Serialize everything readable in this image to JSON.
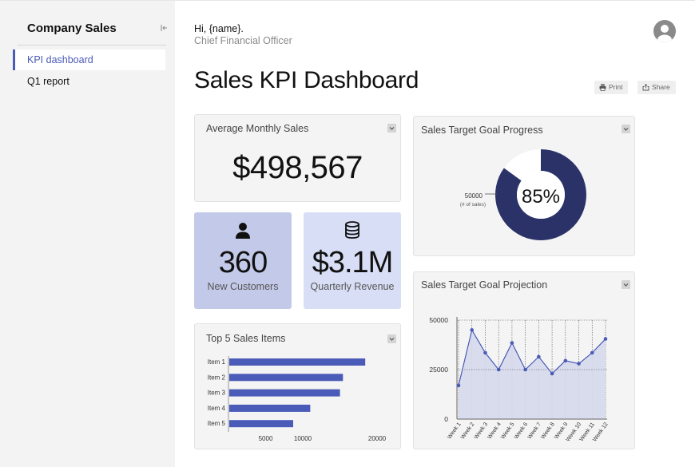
{
  "sidebar": {
    "title": "Company Sales",
    "items": [
      {
        "label": "KPI dashboard",
        "active": true
      },
      {
        "label": "Q1 report",
        "active": false
      }
    ]
  },
  "header": {
    "greeting": "Hi, {name}.",
    "role": "Chief Financial Officer",
    "title": "Sales KPI Dashboard",
    "print_label": "Print",
    "share_label": "Share"
  },
  "avg_sales": {
    "title": "Average Monthly Sales",
    "value": "$498,567"
  },
  "new_customers": {
    "value": "360",
    "label": "New Customers",
    "icon": "person-icon"
  },
  "quarterly_revenue": {
    "value": "$3.1M",
    "label": "Quarterly Revenue",
    "icon": "database-icon"
  },
  "colors": {
    "navy": "#2b3268",
    "accent": "#4a5bb8",
    "kpi1": "#c3c9e8",
    "kpi2": "#d8def5",
    "area": "#d5d9ec"
  },
  "chart_data": [
    {
      "id": "goal_progress",
      "type": "pie",
      "title": "Sales Target Goal Progress",
      "center_label": "85%",
      "percent": 85,
      "target": "50000",
      "target_note": "(# of sales)"
    },
    {
      "id": "top_items",
      "type": "bar",
      "orientation": "horizontal",
      "title": "Top 5 Sales Items",
      "categories": [
        "Item 1",
        "Item 2",
        "Item 3",
        "Item 4",
        "Item 5"
      ],
      "values": [
        18300,
        15300,
        14900,
        10900,
        8600
      ],
      "xlim": [
        0,
        20000
      ],
      "xticks": [
        5000,
        10000,
        20000
      ]
    },
    {
      "id": "goal_projection",
      "type": "area",
      "title": "Sales Target Goal Projection",
      "categories": [
        "Week 1",
        "Week 2",
        "Week 3",
        "Week 4",
        "Week 5",
        "Week 6",
        "Week 7",
        "Week 8",
        "Week 9",
        "Week 10",
        "Week 11",
        "Week 12"
      ],
      "values": [
        17000,
        45000,
        33500,
        25000,
        38500,
        25000,
        31500,
        23000,
        29500,
        28000,
        33500,
        40500
      ],
      "ylim": [
        0,
        50000
      ],
      "yticks": [
        0,
        25000,
        50000
      ]
    }
  ]
}
